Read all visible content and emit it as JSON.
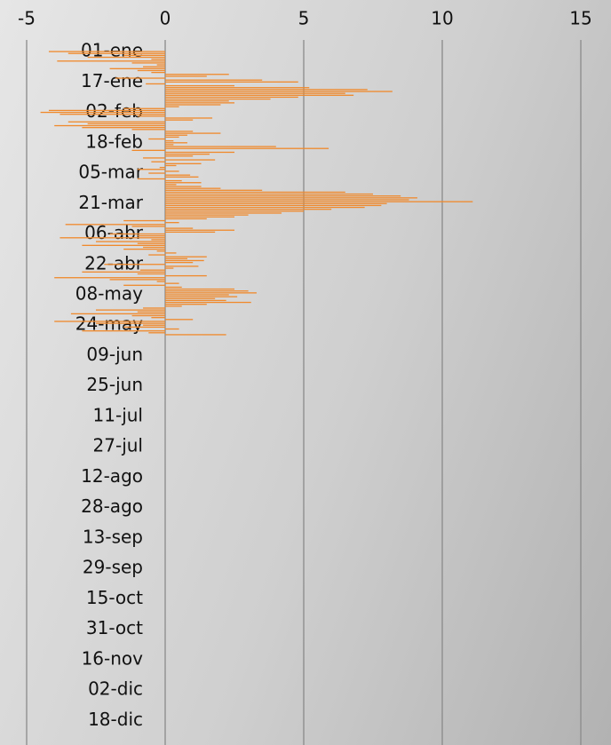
{
  "chart_data": {
    "type": "hbar",
    "color": "#f0892b",
    "grid": true,
    "xlim": [
      -5,
      15
    ],
    "xticks": [
      -5,
      0,
      5,
      10,
      15
    ],
    "categories": [
      "01-ene",
      null,
      null,
      null,
      null,
      null,
      null,
      null,
      null,
      null,
      null,
      null,
      null,
      null,
      null,
      null,
      "17-ene",
      null,
      null,
      null,
      null,
      null,
      null,
      null,
      null,
      null,
      null,
      null,
      null,
      null,
      null,
      null,
      "02-feb",
      null,
      null,
      null,
      null,
      null,
      null,
      null,
      null,
      null,
      null,
      null,
      null,
      null,
      null,
      null,
      "18-feb",
      null,
      null,
      null,
      null,
      null,
      null,
      null,
      null,
      null,
      null,
      null,
      null,
      null,
      null,
      null,
      "05-mar",
      null,
      null,
      null,
      null,
      null,
      null,
      null,
      null,
      null,
      null,
      null,
      null,
      null,
      null,
      null,
      "21-mar",
      null,
      null,
      null,
      null,
      null,
      null,
      null,
      null,
      null,
      null,
      null,
      null,
      null,
      null,
      null,
      "06-abr",
      null,
      null,
      null,
      null,
      null,
      null,
      null,
      null,
      null,
      null,
      null,
      null,
      null,
      null,
      null,
      "22-abr",
      null,
      null,
      null,
      null,
      null,
      null,
      null,
      null,
      null,
      null,
      null,
      null,
      null,
      null,
      null,
      "08-may",
      null,
      null,
      null,
      null,
      null,
      null,
      null,
      null,
      null,
      null,
      null,
      null,
      null,
      null,
      null,
      "24-may",
      null,
      null,
      null,
      null,
      null,
      null,
      null,
      null,
      null,
      null,
      null,
      null,
      null,
      null,
      null,
      "09-jun",
      null,
      null,
      null,
      null,
      null,
      null,
      null,
      null,
      null,
      null,
      null,
      null,
      null,
      null,
      null,
      "25-jun",
      null,
      null,
      null,
      null,
      null,
      null,
      null,
      null,
      null,
      null,
      null,
      null,
      null,
      null,
      null,
      "11-jul",
      null,
      null,
      null,
      null,
      null,
      null,
      null,
      null,
      null,
      null,
      null,
      null,
      null,
      null,
      null,
      "27-jul",
      null,
      null,
      null,
      null,
      null,
      null,
      null,
      null,
      null,
      null,
      null,
      null,
      null,
      null,
      null,
      "12-ago",
      null,
      null,
      null,
      null,
      null,
      null,
      null,
      null,
      null,
      null,
      null,
      null,
      null,
      null,
      null,
      "28-ago",
      null,
      null,
      null,
      null,
      null,
      null,
      null,
      null,
      null,
      null,
      null,
      null,
      null,
      null,
      null,
      "13-sep",
      null,
      null,
      null,
      null,
      null,
      null,
      null,
      null,
      null,
      null,
      null,
      null,
      null,
      null,
      null,
      "29-sep",
      null,
      null,
      null,
      null,
      null,
      null,
      null,
      null,
      null,
      null,
      null,
      null,
      null,
      null,
      null,
      "15-oct",
      null,
      null,
      null,
      null,
      null,
      null,
      null,
      null,
      null,
      null,
      null,
      null,
      null,
      null,
      null,
      "31-oct",
      null,
      null,
      null,
      null,
      null,
      null,
      null,
      null,
      null,
      null,
      null,
      null,
      null,
      null,
      null,
      "16-nov",
      null,
      null,
      null,
      null,
      null,
      null,
      null,
      null,
      null,
      null,
      null,
      null,
      null,
      null,
      null,
      "02-dic",
      null,
      null,
      null,
      null,
      null,
      null,
      null,
      null,
      null,
      null,
      null,
      null,
      null,
      null,
      null,
      "18-dic",
      null,
      null,
      null,
      null,
      null,
      null,
      null,
      null,
      null,
      null,
      null,
      null,
      null
    ],
    "values": [
      -4.2,
      -3.5,
      -1.5,
      -2.8,
      -0.5,
      -3.9,
      -1.2,
      -0.3,
      -0.8,
      -2.0,
      -1.0,
      -0.5,
      2.3,
      1.5,
      -1.8,
      3.5,
      4.8,
      -0.7,
      2.5,
      5.2,
      7.3,
      8.2,
      6.5,
      6.8,
      4.8,
      3.8,
      2.3,
      2.5,
      2.0,
      0.5,
      -1.5,
      -4.2,
      -4.5,
      -3.8,
      -1.0,
      1.7,
      1.0,
      -3.5,
      -2.8,
      -4.0,
      -3.0,
      -1.2,
      1.0,
      2.0,
      0.8,
      0.5,
      -0.6,
      0.3,
      0.8,
      0.3,
      4.0,
      5.9,
      -1.2,
      2.5,
      1.6,
      1.0,
      -0.8,
      1.8,
      -0.5,
      1.3,
      0.4,
      -0.2,
      -1.0,
      0.5,
      -0.6,
      0.9,
      1.2,
      -1.0,
      0.6,
      1.3,
      0.4,
      1.3,
      2.0,
      3.5,
      6.5,
      7.5,
      8.5,
      9.1,
      8.8,
      11.1,
      8.0,
      7.8,
      7.2,
      6.0,
      5.0,
      4.2,
      3.0,
      2.5,
      1.5,
      -1.5,
      0.5,
      -3.6,
      -1.2,
      1.0,
      2.5,
      1.8,
      -2.0,
      -1.0,
      -3.8,
      -0.5,
      -2.5,
      -1.0,
      -3.0,
      -0.8,
      -1.5,
      -0.3,
      0.4,
      -0.6,
      1.5,
      0.8,
      1.4,
      1.0,
      -2.2,
      1.2,
      0.3,
      -0.9,
      -3.0,
      -1.0,
      1.5,
      -4.0,
      -2.0,
      -0.3,
      0.5,
      -1.5,
      0.6,
      2.5,
      3.0,
      3.3,
      2.3,
      2.6,
      1.8,
      2.2,
      3.1,
      1.5,
      0.6,
      -0.8,
      -2.5,
      -1.0,
      -3.4,
      -1.2,
      -0.5,
      1.0,
      -4.0,
      -2.5,
      -0.8,
      -1.5,
      0.5,
      -3.0,
      -0.6,
      2.2,
      null,
      null,
      null,
      null,
      null,
      null,
      null,
      null,
      null,
      null,
      null,
      null,
      null,
      null,
      null,
      null,
      null,
      null,
      null,
      null,
      null,
      null,
      null,
      null,
      null,
      null,
      null,
      null,
      null,
      null,
      null,
      null,
      null,
      null,
      null,
      null,
      null,
      null,
      null,
      null,
      null,
      null,
      null,
      null,
      null,
      null,
      null,
      null,
      null,
      null,
      null,
      null,
      null,
      null,
      null,
      null,
      null,
      null,
      null,
      null,
      null,
      null,
      null,
      null,
      null,
      null,
      null,
      null,
      null,
      null,
      null,
      null,
      null,
      null,
      null,
      null,
      null,
      null,
      null,
      null,
      null,
      null,
      null,
      null,
      null,
      null,
      null,
      null,
      null,
      null,
      null,
      null,
      null,
      null,
      null,
      null,
      null,
      null,
      null,
      null,
      null,
      null,
      null,
      null,
      null,
      null,
      null,
      null,
      null,
      null,
      null,
      null,
      null,
      null,
      null,
      null,
      null,
      null,
      null,
      null,
      null,
      null,
      null,
      null,
      null,
      null,
      null,
      null,
      null,
      null,
      null,
      null,
      null,
      null,
      null,
      null,
      null,
      null,
      null,
      null,
      null,
      null,
      null,
      null,
      null,
      null,
      null,
      null,
      null,
      null,
      null,
      null,
      null,
      null,
      null,
      null,
      null,
      null,
      null,
      null,
      null,
      null,
      null,
      null,
      null,
      null,
      null,
      null,
      null,
      null,
      null,
      null,
      null,
      null,
      null,
      null,
      null,
      null,
      null,
      null,
      null,
      null,
      null,
      null,
      null,
      null,
      null,
      null,
      null,
      null,
      null,
      null,
      null,
      null,
      null,
      null,
      null,
      null,
      null,
      null,
      null,
      null,
      null,
      null,
      null,
      null,
      null,
      null,
      null,
      null,
      null,
      null,
      null,
      null,
      null,
      null
    ]
  }
}
